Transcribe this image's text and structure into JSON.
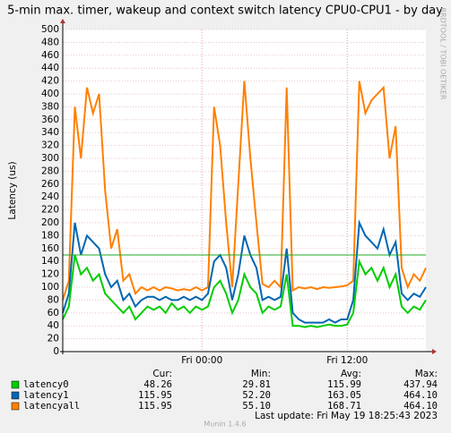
{
  "chart_data": {
    "type": "line",
    "title": "5-min max. timer, wakeup and context switch latency CPU0-CPU1 - by day",
    "y_label": "Latency (us)",
    "side_text": "RRDTOOL / TOBI OETIKER",
    "x": [
      -11.5,
      -11,
      -10.5,
      -10,
      -9.5,
      -9,
      -8.5,
      -8,
      -7.5,
      -7,
      -6.5,
      -6,
      -5.5,
      -5,
      -4.5,
      -4,
      -3.5,
      -3,
      -2.5,
      -2,
      -1.5,
      -1,
      -0.5,
      0,
      0.5,
      1,
      1.5,
      2,
      2.5,
      3,
      3.5,
      4,
      4.5,
      5,
      5.5,
      6,
      6.5,
      7,
      7.5,
      8,
      8.5,
      9,
      9.5,
      10,
      10.5,
      11,
      11.5,
      12,
      12.5,
      13,
      13.5,
      14,
      14.5,
      15,
      15.5,
      16,
      16.5,
      17,
      17.5,
      18,
      18.5
    ],
    "xlim": [
      -11.5,
      18.5
    ],
    "xticks": [
      {
        "value": 0,
        "label": "Fri 00:00"
      },
      {
        "value": 12,
        "label": "Fri 12:00"
      }
    ],
    "ylim": [
      0,
      500
    ],
    "yticks": [
      0,
      20,
      40,
      60,
      80,
      100,
      120,
      140,
      160,
      180,
      200,
      220,
      240,
      260,
      280,
      300,
      320,
      340,
      360,
      380,
      400,
      420,
      440,
      460,
      480,
      500
    ],
    "grid": true,
    "hline": {
      "value": 150,
      "color": "#22aa22"
    },
    "series": [
      {
        "name": "latency0",
        "color": "#00cc00",
        "values": [
          50,
          70,
          150,
          120,
          130,
          110,
          120,
          90,
          80,
          70,
          60,
          70,
          50,
          60,
          70,
          65,
          70,
          60,
          75,
          65,
          70,
          60,
          70,
          65,
          70,
          100,
          110,
          90,
          60,
          80,
          120,
          100,
          90,
          60,
          70,
          65,
          70,
          120,
          40,
          40,
          38,
          40,
          38,
          40,
          42,
          40,
          40,
          42,
          60,
          140,
          120,
          130,
          110,
          130,
          100,
          120,
          70,
          60,
          70,
          65,
          80
        ]
      },
      {
        "name": "latency1",
        "color": "#0066b3",
        "values": [
          60,
          90,
          200,
          150,
          180,
          170,
          160,
          120,
          100,
          110,
          80,
          90,
          70,
          80,
          85,
          85,
          80,
          85,
          80,
          80,
          85,
          80,
          85,
          80,
          90,
          140,
          150,
          130,
          80,
          120,
          180,
          150,
          130,
          80,
          85,
          80,
          85,
          160,
          60,
          50,
          45,
          45,
          45,
          45,
          50,
          45,
          50,
          50,
          80,
          200,
          180,
          170,
          160,
          190,
          150,
          170,
          90,
          80,
          90,
          85,
          100
        ]
      },
      {
        "name": "latencyall",
        "color": "#ff8000",
        "values": [
          80,
          110,
          380,
          300,
          410,
          370,
          400,
          250,
          160,
          190,
          110,
          120,
          90,
          100,
          95,
          100,
          95,
          100,
          98,
          95,
          97,
          95,
          100,
          95,
          100,
          380,
          320,
          200,
          100,
          260,
          420,
          300,
          200,
          105,
          100,
          110,
          100,
          410,
          95,
          100,
          98,
          100,
          97,
          100,
          99,
          100,
          101,
          103,
          110,
          420,
          370,
          390,
          400,
          410,
          300,
          350,
          130,
          100,
          120,
          110,
          130
        ]
      }
    ],
    "legend_table": {
      "headers": [
        "Cur:",
        "Min:",
        "Avg:",
        "Max:"
      ],
      "rows": [
        [
          "48.26",
          "29.81",
          "115.99",
          "437.94"
        ],
        [
          "115.95",
          "52.20",
          "163.05",
          "464.10"
        ],
        [
          "115.95",
          "55.10",
          "168.71",
          "464.10"
        ]
      ]
    },
    "footer": "Munin 1.4.6",
    "last_update": "Last update: Fri May 19 18:25:43 2023"
  }
}
